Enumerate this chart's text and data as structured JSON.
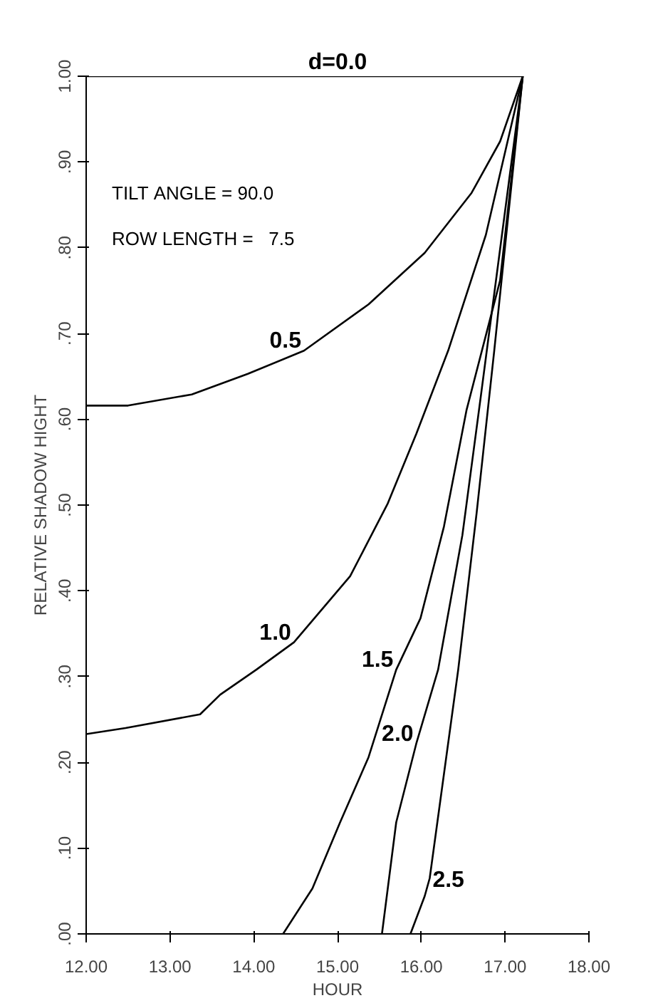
{
  "chart_data": {
    "type": "line",
    "xlabel": "HOUR",
    "ylabel": "RELATIVE SHADOW HIGHT",
    "xlim": [
      12,
      18
    ],
    "ylim": [
      0,
      1
    ],
    "xticks": [
      {
        "value": 12,
        "label": "12.00"
      },
      {
        "value": 13,
        "label": "13.00"
      },
      {
        "value": 14,
        "label": "14.00"
      },
      {
        "value": 15,
        "label": "15.00"
      },
      {
        "value": 16,
        "label": "16.00"
      },
      {
        "value": 17,
        "label": "17.00"
      },
      {
        "value": 18,
        "label": "18.00"
      }
    ],
    "yticks": [
      {
        "value": 0,
        "label": ".00"
      },
      {
        "value": 0.1,
        "label": ".10"
      },
      {
        "value": 0.2,
        "label": ".20"
      },
      {
        "value": 0.3,
        "label": ".30"
      },
      {
        "value": 0.4,
        "label": ".40"
      },
      {
        "value": 0.5,
        "label": ".50"
      },
      {
        "value": 0.6,
        "label": ".60"
      },
      {
        "value": 0.7,
        "label": ".70"
      },
      {
        "value": 0.8,
        "label": ".80"
      },
      {
        "value": 0.9,
        "label": ".90"
      },
      {
        "value": 1,
        "label": "1.00"
      }
    ],
    "grid": false,
    "marker": "none",
    "line_style": "solid",
    "series": [
      {
        "name": "d=0.0",
        "color": "#000000",
        "x": [
          12,
          17.21
        ],
        "values": [
          1.0,
          1.0
        ]
      },
      {
        "name": "0.5",
        "color": "#000000",
        "x": [
          12,
          12.5,
          13.26,
          13.93,
          14.6,
          15.37,
          16.04,
          16.6,
          16.94,
          17.21
        ],
        "values": [
          0.616,
          0.616,
          0.629,
          0.653,
          0.68,
          0.734,
          0.794,
          0.864,
          0.924,
          1.0
        ]
      },
      {
        "name": "1.0",
        "color": "#000000",
        "x": [
          12,
          12.47,
          13.36,
          13.6,
          14.03,
          14.48,
          15.15,
          15.6,
          15.94,
          16.32,
          16.77,
          17.21
        ],
        "values": [
          0.233,
          0.24,
          0.256,
          0.279,
          0.308,
          0.34,
          0.417,
          0.502,
          0.583,
          0.68,
          0.815,
          1.0
        ]
      },
      {
        "name": "1.5",
        "color": "#000000",
        "x": [
          14.35,
          14.7,
          15.03,
          15.37,
          15.7,
          15.99,
          16.27,
          16.54,
          16.94,
          17.21
        ],
        "values": [
          0,
          0.053,
          0.13,
          0.206,
          0.308,
          0.368,
          0.475,
          0.611,
          0.762,
          1.0
        ]
      },
      {
        "name": "2.0",
        "color": "#000000",
        "x": [
          15.53,
          15.7,
          15.94,
          16.2,
          16.49,
          16.71,
          17.21
        ],
        "values": [
          0,
          0.13,
          0.222,
          0.308,
          0.465,
          0.627,
          1.0
        ]
      },
      {
        "name": "2.5",
        "color": "#000000",
        "x": [
          15.87,
          16.04,
          16.1,
          16.44,
          16.66,
          16.87,
          17.21
        ],
        "values": [
          0,
          0.044,
          0.065,
          0.308,
          0.491,
          0.68,
          1.0
        ]
      }
    ],
    "annotations": [
      "TILT ANGLE = 90.0",
      "ROW LENGTH =   7.5"
    ]
  }
}
